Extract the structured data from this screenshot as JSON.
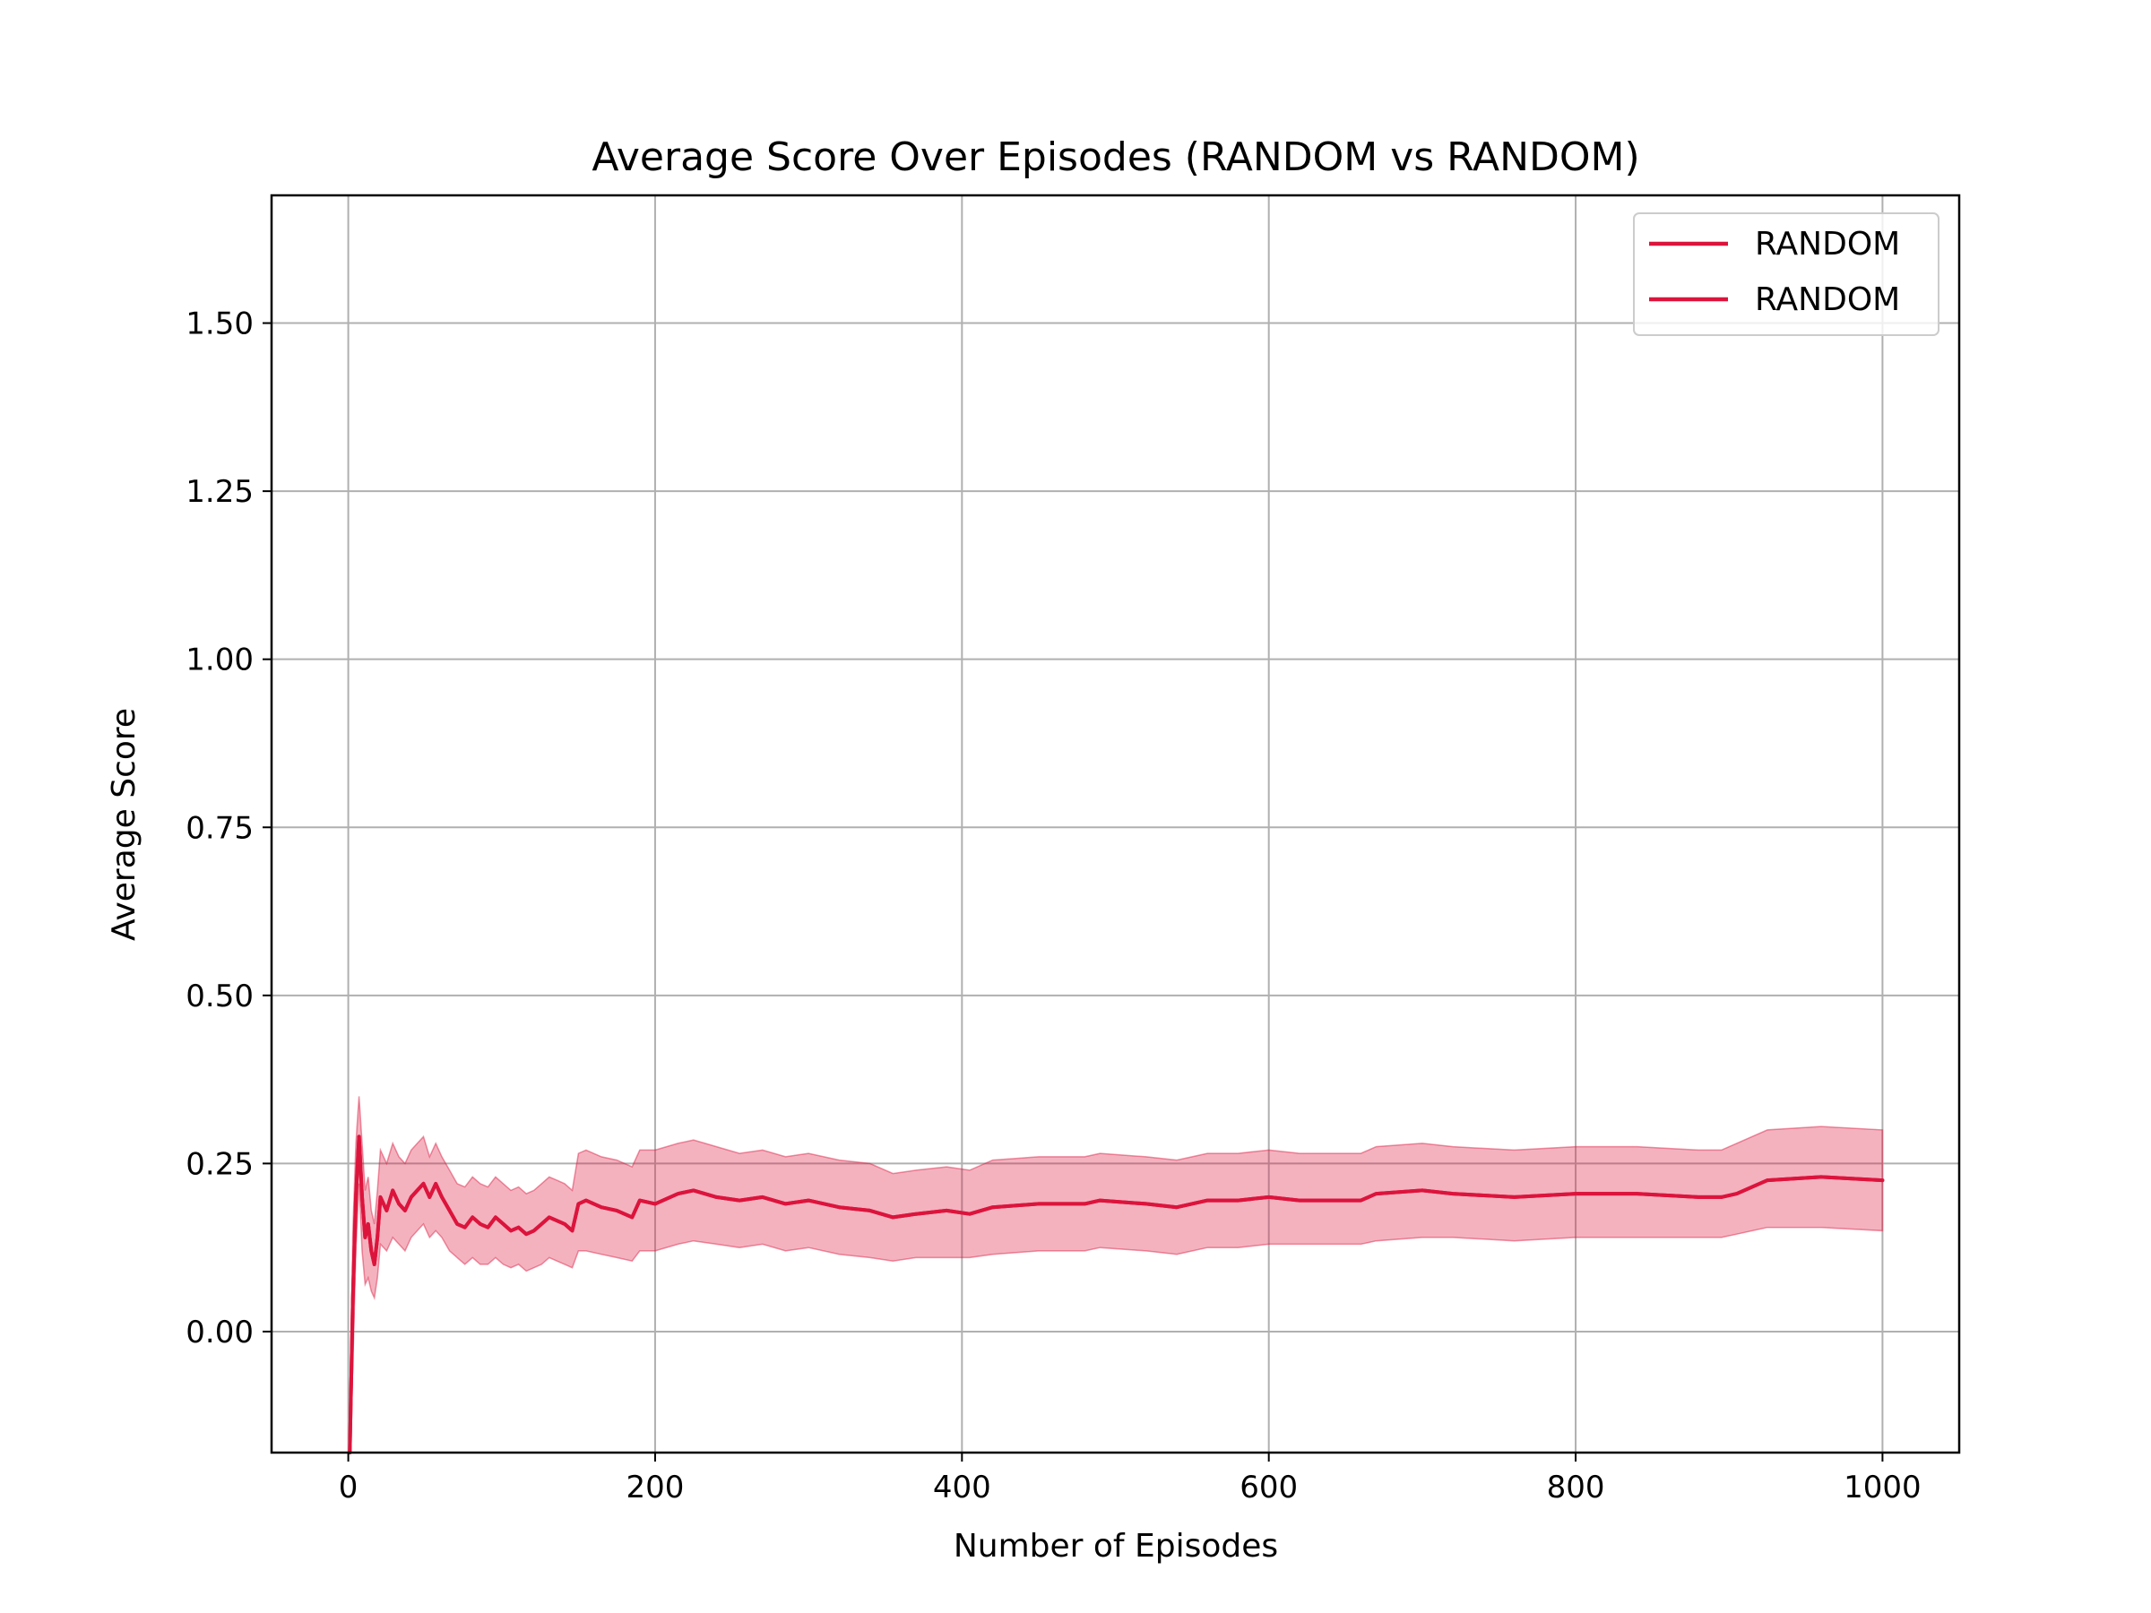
{
  "chart_data": {
    "type": "line",
    "title": "Average Score Over Episodes (RANDOM vs RANDOM)",
    "xlabel": "Number of Episodes",
    "ylabel": "Average Score",
    "xlim": [
      -50,
      1050
    ],
    "ylim": [
      -0.18,
      1.69
    ],
    "x_ticks": [
      0,
      200,
      400,
      600,
      800,
      1000
    ],
    "x_tick_labels": [
      "0",
      "200",
      "400",
      "600",
      "800",
      "1000"
    ],
    "y_ticks": [
      0.0,
      0.25,
      0.5,
      0.75,
      1.0,
      1.25,
      1.5
    ],
    "y_tick_labels": [
      "0.00",
      "0.25",
      "0.50",
      "0.75",
      "1.00",
      "1.25",
      "1.50"
    ],
    "grid": true,
    "legend": {
      "placement": "top-right",
      "entries": [
        "RANDOM",
        "RANDOM"
      ]
    },
    "colors": {
      "line": "#dc143c",
      "band": "#dc143c"
    },
    "series": [
      {
        "name": "RANDOM",
        "x": [
          1,
          3,
          5,
          7,
          9,
          11,
          13,
          15,
          17,
          19,
          21,
          25,
          29,
          33,
          37,
          41,
          45,
          49,
          53,
          57,
          61,
          66,
          71,
          76,
          81,
          86,
          91,
          96,
          101,
          106,
          111,
          116,
          121,
          126,
          131,
          136,
          141,
          146,
          150,
          155,
          165,
          175,
          185,
          190,
          200,
          215,
          225,
          240,
          255,
          270,
          285,
          300,
          320,
          340,
          355,
          370,
          390,
          405,
          420,
          450,
          480,
          490,
          520,
          540,
          560,
          580,
          600,
          620,
          640,
          660,
          670,
          700,
          720,
          760,
          800,
          840,
          880,
          895,
          905,
          925,
          960,
          1000
        ],
        "y": [
          -0.18,
          0.05,
          0.2,
          0.29,
          0.2,
          0.14,
          0.16,
          0.12,
          0.1,
          0.14,
          0.2,
          0.18,
          0.21,
          0.19,
          0.18,
          0.2,
          0.21,
          0.22,
          0.2,
          0.22,
          0.2,
          0.18,
          0.16,
          0.155,
          0.17,
          0.16,
          0.155,
          0.17,
          0.16,
          0.15,
          0.155,
          0.145,
          0.15,
          0.16,
          0.17,
          0.165,
          0.16,
          0.15,
          0.19,
          0.195,
          0.185,
          0.18,
          0.17,
          0.195,
          0.19,
          0.205,
          0.21,
          0.2,
          0.195,
          0.2,
          0.19,
          0.195,
          0.185,
          0.18,
          0.17,
          0.175,
          0.18,
          0.175,
          0.185,
          0.19,
          0.19,
          0.195,
          0.19,
          0.185,
          0.195,
          0.195,
          0.2,
          0.195,
          0.195,
          0.195,
          0.205,
          0.21,
          0.205,
          0.2,
          0.205,
          0.205,
          0.2,
          0.2,
          0.205,
          0.225,
          0.23,
          0.225
        ],
        "lower": [
          -0.18,
          -0.05,
          0.12,
          0.22,
          0.12,
          0.07,
          0.08,
          0.06,
          0.05,
          0.08,
          0.13,
          0.12,
          0.14,
          0.13,
          0.12,
          0.14,
          0.15,
          0.16,
          0.14,
          0.15,
          0.14,
          0.12,
          0.11,
          0.1,
          0.11,
          0.1,
          0.1,
          0.11,
          0.1,
          0.095,
          0.1,
          0.09,
          0.095,
          0.1,
          0.11,
          0.105,
          0.1,
          0.095,
          0.12,
          0.12,
          0.115,
          0.11,
          0.105,
          0.12,
          0.12,
          0.13,
          0.135,
          0.13,
          0.125,
          0.13,
          0.12,
          0.125,
          0.115,
          0.11,
          0.105,
          0.11,
          0.11,
          0.11,
          0.115,
          0.12,
          0.12,
          0.125,
          0.12,
          0.115,
          0.125,
          0.125,
          0.13,
          0.13,
          0.13,
          0.13,
          0.135,
          0.14,
          0.14,
          0.135,
          0.14,
          0.14,
          0.14,
          0.14,
          0.145,
          0.155,
          0.155,
          0.15
        ],
        "upper": [
          -0.18,
          0.15,
          0.28,
          0.35,
          0.28,
          0.21,
          0.23,
          0.18,
          0.16,
          0.21,
          0.27,
          0.25,
          0.28,
          0.26,
          0.25,
          0.27,
          0.28,
          0.29,
          0.26,
          0.28,
          0.26,
          0.24,
          0.22,
          0.215,
          0.23,
          0.22,
          0.215,
          0.23,
          0.22,
          0.21,
          0.215,
          0.205,
          0.21,
          0.22,
          0.23,
          0.225,
          0.22,
          0.21,
          0.265,
          0.27,
          0.26,
          0.255,
          0.245,
          0.27,
          0.27,
          0.28,
          0.285,
          0.275,
          0.265,
          0.27,
          0.26,
          0.265,
          0.255,
          0.25,
          0.235,
          0.24,
          0.245,
          0.24,
          0.255,
          0.26,
          0.26,
          0.265,
          0.26,
          0.255,
          0.265,
          0.265,
          0.27,
          0.265,
          0.265,
          0.265,
          0.275,
          0.28,
          0.275,
          0.27,
          0.275,
          0.275,
          0.27,
          0.27,
          0.28,
          0.3,
          0.305,
          0.3
        ]
      },
      {
        "name": "RANDOM",
        "x": [
          1,
          3,
          5,
          7,
          9,
          11,
          13,
          15,
          17,
          19,
          21,
          25,
          29,
          33,
          37,
          41,
          45,
          49,
          53,
          57,
          61,
          66,
          71,
          76,
          81,
          86,
          91,
          96,
          101,
          106,
          111,
          116,
          121,
          126,
          131,
          136,
          141,
          146,
          150,
          155,
          165,
          175,
          185,
          190,
          200,
          215,
          225,
          240,
          255,
          270,
          285,
          300,
          320,
          340,
          355,
          370,
          390,
          405,
          420,
          450,
          480,
          490,
          520,
          540,
          560,
          580,
          600,
          620,
          640,
          660,
          670,
          700,
          720,
          760,
          800,
          840,
          880,
          895,
          905,
          925,
          960,
          1000
        ],
        "y": [
          -0.18,
          0.05,
          0.2,
          0.29,
          0.2,
          0.14,
          0.16,
          0.12,
          0.1,
          0.14,
          0.2,
          0.18,
          0.21,
          0.19,
          0.18,
          0.2,
          0.21,
          0.22,
          0.2,
          0.22,
          0.2,
          0.18,
          0.16,
          0.155,
          0.17,
          0.16,
          0.155,
          0.17,
          0.16,
          0.15,
          0.155,
          0.145,
          0.15,
          0.16,
          0.17,
          0.165,
          0.16,
          0.15,
          0.19,
          0.195,
          0.185,
          0.18,
          0.17,
          0.195,
          0.19,
          0.205,
          0.21,
          0.2,
          0.195,
          0.2,
          0.19,
          0.195,
          0.185,
          0.18,
          0.17,
          0.175,
          0.18,
          0.175,
          0.185,
          0.19,
          0.19,
          0.195,
          0.19,
          0.185,
          0.195,
          0.195,
          0.2,
          0.195,
          0.195,
          0.195,
          0.205,
          0.21,
          0.205,
          0.2,
          0.205,
          0.205,
          0.2,
          0.2,
          0.205,
          0.225,
          0.23,
          0.225
        ],
        "lower": [
          -0.18,
          -0.05,
          0.12,
          0.22,
          0.12,
          0.07,
          0.08,
          0.06,
          0.05,
          0.08,
          0.13,
          0.12,
          0.14,
          0.13,
          0.12,
          0.14,
          0.15,
          0.16,
          0.14,
          0.15,
          0.14,
          0.12,
          0.11,
          0.1,
          0.11,
          0.1,
          0.1,
          0.11,
          0.1,
          0.095,
          0.1,
          0.09,
          0.095,
          0.1,
          0.11,
          0.105,
          0.1,
          0.095,
          0.12,
          0.12,
          0.115,
          0.11,
          0.105,
          0.12,
          0.12,
          0.13,
          0.135,
          0.13,
          0.125,
          0.13,
          0.12,
          0.125,
          0.115,
          0.11,
          0.105,
          0.11,
          0.11,
          0.11,
          0.115,
          0.12,
          0.12,
          0.125,
          0.12,
          0.115,
          0.125,
          0.125,
          0.13,
          0.13,
          0.13,
          0.13,
          0.135,
          0.14,
          0.14,
          0.135,
          0.14,
          0.14,
          0.14,
          0.14,
          0.145,
          0.155,
          0.155,
          0.15
        ],
        "upper": [
          -0.18,
          0.15,
          0.28,
          0.35,
          0.28,
          0.21,
          0.23,
          0.18,
          0.16,
          0.21,
          0.27,
          0.25,
          0.28,
          0.26,
          0.25,
          0.27,
          0.28,
          0.29,
          0.26,
          0.28,
          0.26,
          0.24,
          0.22,
          0.215,
          0.23,
          0.22,
          0.215,
          0.23,
          0.22,
          0.21,
          0.215,
          0.205,
          0.21,
          0.22,
          0.23,
          0.225,
          0.22,
          0.21,
          0.265,
          0.27,
          0.26,
          0.255,
          0.245,
          0.27,
          0.27,
          0.28,
          0.285,
          0.275,
          0.265,
          0.27,
          0.26,
          0.265,
          0.255,
          0.25,
          0.235,
          0.24,
          0.245,
          0.24,
          0.255,
          0.26,
          0.26,
          0.265,
          0.26,
          0.255,
          0.265,
          0.265,
          0.27,
          0.265,
          0.265,
          0.265,
          0.275,
          0.28,
          0.275,
          0.27,
          0.275,
          0.275,
          0.27,
          0.27,
          0.28,
          0.3,
          0.305,
          0.3
        ]
      }
    ]
  }
}
